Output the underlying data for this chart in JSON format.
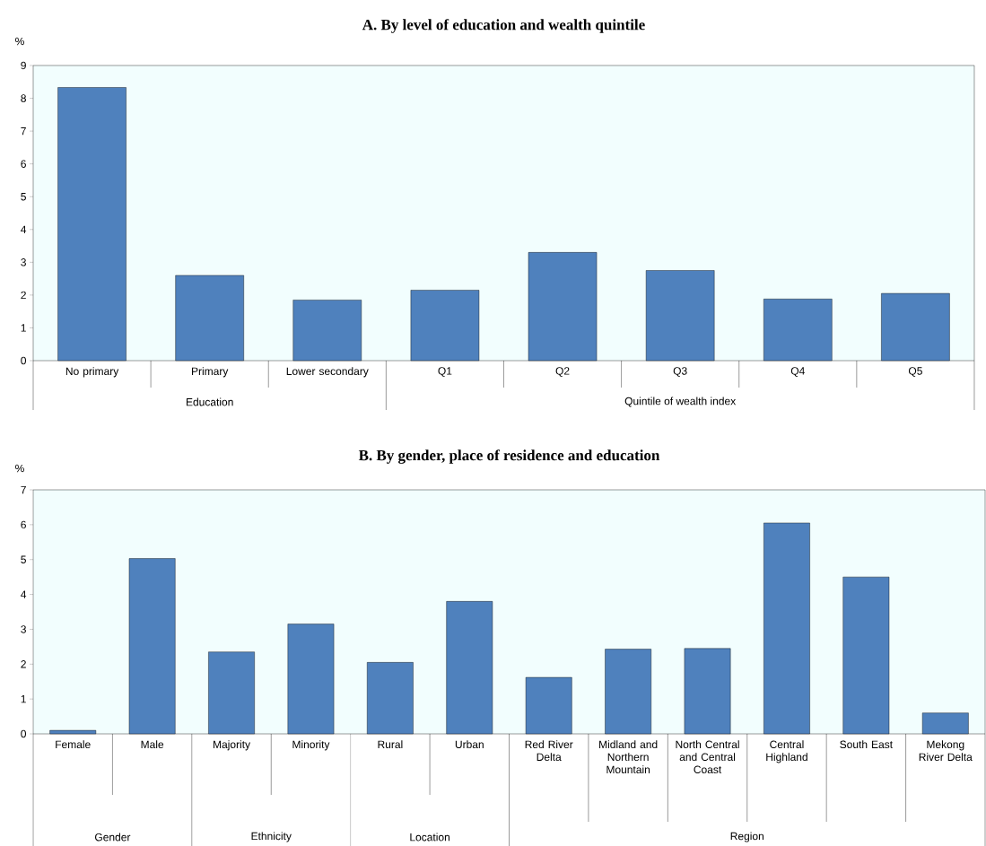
{
  "chart_data": [
    {
      "type": "bar",
      "title": "A. By level of education and wealth quintile",
      "ylabel": "%",
      "categories": [
        "No primary",
        "Primary",
        "Lower secondary",
        "Q1",
        "Q2",
        "Q3",
        "Q4",
        "Q5"
      ],
      "values": [
        8.33,
        2.6,
        1.85,
        2.15,
        3.3,
        2.75,
        1.88,
        2.05
      ],
      "color": "#4f81bd",
      "ylim": [
        0,
        9
      ],
      "yticks": [
        0,
        1,
        2,
        3,
        4,
        5,
        6,
        7,
        8,
        9
      ],
      "annotations": [
        "Education",
        "Quintile of wealth index"
      ]
    },
    {
      "type": "bar",
      "title": "B. By gender, place of residence and education",
      "ylabel": "%",
      "categories": [
        "Female",
        "Male",
        "Majority",
        "Minority",
        "Rural",
        "Urban",
        "Red River Delta",
        "Midland and Northern Mountain",
        "North Central and Central Coast",
        "Central Highland",
        "South East",
        "Mekong River Delta"
      ],
      "values": [
        0.1,
        5.03,
        2.35,
        3.15,
        2.05,
        3.8,
        1.62,
        2.43,
        2.45,
        6.05,
        4.5,
        0.6
      ],
      "color": "#4f81bd",
      "ylim": [
        0,
        7
      ],
      "yticks": [
        0,
        1,
        2,
        3,
        4,
        5,
        6,
        7
      ],
      "annotations": [
        "Gender",
        "Ethnicity",
        "Location",
        "Region"
      ]
    }
  ]
}
